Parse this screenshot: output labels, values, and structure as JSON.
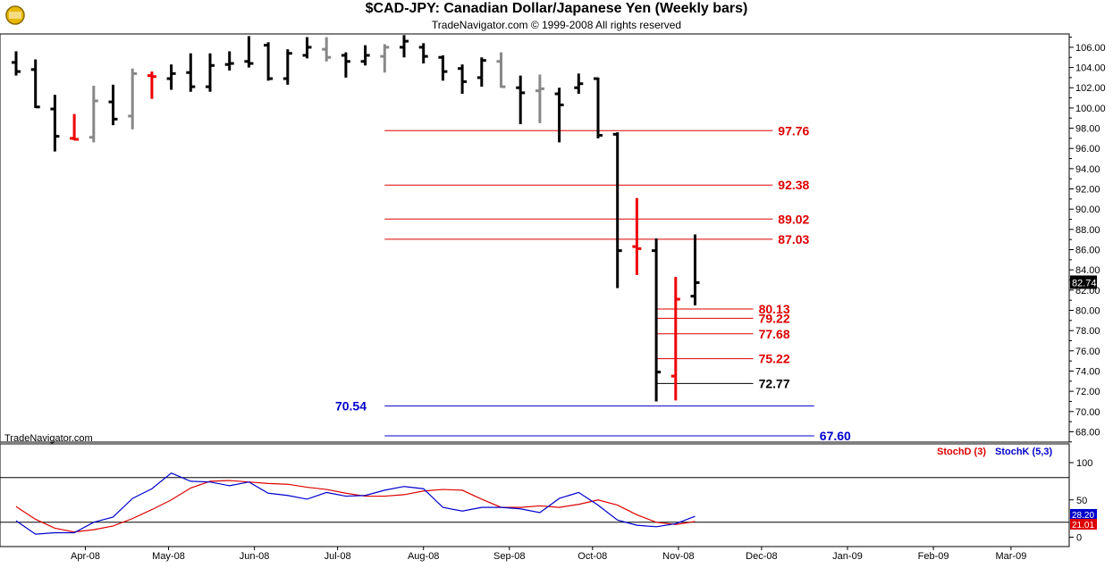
{
  "header": {
    "title": "$CAD-JPY:  Canadian Dollar/Japanese Yen  (Weekly bars)",
    "subtitle": "TradeNavigator.com © 1999-2008 All rights reserved",
    "watermark": "TradeNavigator.com"
  },
  "colors": {
    "up_bar": "#000000",
    "down_bar": "#000000",
    "red_bar": "#ee0000",
    "gray_bar": "#888888",
    "fib_red": "#dd0000",
    "support_blue": "#0000cc",
    "stoch_d": "#dd0000",
    "stoch_k": "#0000cc"
  },
  "chart_data": [
    {
      "type": "ohlc",
      "name": "price",
      "ylim": [
        66.8,
        107.0
      ],
      "yticks": [
        "106.00",
        "104.00",
        "102.00",
        "100.00",
        "98.00",
        "96.00",
        "94.00",
        "92.00",
        "90.00",
        "88.00",
        "86.00",
        "84.00",
        "82.00",
        "80.00",
        "78.00",
        "76.00",
        "74.00",
        "72.00",
        "70.00",
        "68.00"
      ],
      "xlabels": [
        "Apr-08",
        "May-08",
        "Jun-08",
        "Jul-08",
        "Aug-08",
        "Sep-08",
        "Oct-08",
        "Nov-08",
        "Dec-08",
        "Jan-09",
        "Feb-09",
        "Mar-09"
      ],
      "last_price": "82.74",
      "bars": [
        {
          "d": "2008-03-07",
          "o": 104.5,
          "h": 105.6,
          "l": 103.2,
          "c": 103.6,
          "color": "black"
        },
        {
          "d": "2008-03-14",
          "o": 103.8,
          "h": 104.8,
          "l": 100.0,
          "c": 100.1,
          "color": "black"
        },
        {
          "d": "2008-03-21",
          "o": 99.9,
          "h": 101.3,
          "l": 95.7,
          "c": 97.2,
          "color": "black"
        },
        {
          "d": "2008-03-28",
          "o": 97.0,
          "h": 99.4,
          "l": 96.8,
          "c": 96.9,
          "color": "red"
        },
        {
          "d": "2008-04-04",
          "o": 97.1,
          "h": 102.2,
          "l": 96.6,
          "c": 100.7,
          "color": "gray"
        },
        {
          "d": "2008-04-11",
          "o": 100.6,
          "h": 102.3,
          "l": 98.3,
          "c": 98.9,
          "color": "black"
        },
        {
          "d": "2008-04-18",
          "o": 99.2,
          "h": 103.9,
          "l": 97.9,
          "c": 103.4,
          "color": "gray"
        },
        {
          "d": "2008-04-25",
          "o": 103.2,
          "h": 103.6,
          "l": 100.9,
          "c": 103.1,
          "color": "red"
        },
        {
          "d": "2008-05-02",
          "o": 102.9,
          "h": 104.3,
          "l": 101.8,
          "c": 103.4,
          "color": "black"
        },
        {
          "d": "2008-05-09",
          "o": 103.5,
          "h": 105.4,
          "l": 101.6,
          "c": 102.1,
          "color": "black"
        },
        {
          "d": "2008-05-16",
          "o": 102.1,
          "h": 105.4,
          "l": 101.6,
          "c": 104.2,
          "color": "black"
        },
        {
          "d": "2008-05-23",
          "o": 104.3,
          "h": 105.6,
          "l": 103.7,
          "c": 104.4,
          "color": "black"
        },
        {
          "d": "2008-05-30",
          "o": 104.6,
          "h": 107.1,
          "l": 104.0,
          "c": 104.4,
          "color": "black"
        },
        {
          "d": "2008-06-06",
          "o": 106.2,
          "h": 106.5,
          "l": 102.7,
          "c": 102.9,
          "color": "black"
        },
        {
          "d": "2008-06-13",
          "o": 102.9,
          "h": 105.8,
          "l": 102.3,
          "c": 105.4,
          "color": "black"
        },
        {
          "d": "2008-06-20",
          "o": 105.2,
          "h": 107.0,
          "l": 104.9,
          "c": 106.0,
          "color": "black"
        },
        {
          "d": "2008-06-27",
          "o": 105.8,
          "h": 107.0,
          "l": 104.6,
          "c": 105.0,
          "color": "gray"
        },
        {
          "d": "2008-07-04",
          "o": 105.2,
          "h": 105.5,
          "l": 103.0,
          "c": 104.6,
          "color": "black"
        },
        {
          "d": "2008-07-11",
          "o": 104.6,
          "h": 106.2,
          "l": 104.2,
          "c": 105.2,
          "color": "black"
        },
        {
          "d": "2008-07-18",
          "o": 105.1,
          "h": 106.3,
          "l": 103.5,
          "c": 106.0,
          "color": "gray"
        },
        {
          "d": "2008-07-25",
          "o": 106.0,
          "h": 107.2,
          "l": 105.0,
          "c": 106.6,
          "color": "black"
        },
        {
          "d": "2008-08-01",
          "o": 106.0,
          "h": 106.4,
          "l": 104.4,
          "c": 105.1,
          "color": "black"
        },
        {
          "d": "2008-08-08",
          "o": 105.0,
          "h": 105.2,
          "l": 102.7,
          "c": 103.6,
          "color": "black"
        },
        {
          "d": "2008-08-15",
          "o": 103.9,
          "h": 104.3,
          "l": 101.4,
          "c": 102.6,
          "color": "black"
        },
        {
          "d": "2008-08-22",
          "o": 103.0,
          "h": 105.0,
          "l": 102.1,
          "c": 104.7,
          "color": "black"
        },
        {
          "d": "2008-08-29",
          "o": 104.6,
          "h": 105.5,
          "l": 102.0,
          "c": 102.1,
          "color": "gray"
        },
        {
          "d": "2008-09-05",
          "o": 102.0,
          "h": 103.2,
          "l": 98.4,
          "c": 101.5,
          "color": "black"
        },
        {
          "d": "2008-09-12",
          "o": 101.7,
          "h": 103.3,
          "l": 98.5,
          "c": 101.9,
          "color": "gray"
        },
        {
          "d": "2008-09-19",
          "o": 101.4,
          "h": 102.0,
          "l": 96.6,
          "c": 100.3,
          "color": "black"
        },
        {
          "d": "2008-09-26",
          "o": 102.0,
          "h": 103.4,
          "l": 101.4,
          "c": 102.4,
          "color": "black"
        },
        {
          "d": "2008-10-03",
          "o": 102.9,
          "h": 103.0,
          "l": 97.0,
          "c": 97.3,
          "color": "black"
        },
        {
          "d": "2008-10-10",
          "o": 97.4,
          "h": 97.6,
          "l": 82.2,
          "c": 85.9,
          "color": "black"
        },
        {
          "d": "2008-10-17",
          "o": 86.3,
          "h": 91.1,
          "l": 83.5,
          "c": 86.1,
          "color": "red"
        },
        {
          "d": "2008-10-24",
          "o": 85.9,
          "h": 87.1,
          "l": 71.0,
          "c": 73.9,
          "color": "black"
        },
        {
          "d": "2008-10-31",
          "o": 73.5,
          "h": 83.3,
          "l": 71.1,
          "c": 81.1,
          "color": "red"
        },
        {
          "d": "2008-11-07",
          "o": 81.4,
          "h": 87.5,
          "l": 80.5,
          "c": 82.74,
          "color": "black"
        }
      ],
      "levels": [
        {
          "value": 97.76,
          "label": "97.76",
          "color": "red",
          "from": "2008-07-18",
          "to": "2008-12-05"
        },
        {
          "value": 92.38,
          "label": "92.38",
          "color": "red",
          "from": "2008-07-18",
          "to": "2008-12-05"
        },
        {
          "value": 89.02,
          "label": "89.02",
          "color": "red",
          "from": "2008-07-18",
          "to": "2008-12-05"
        },
        {
          "value": 87.03,
          "label": "87.03",
          "color": "red",
          "from": "2008-07-18",
          "to": "2008-12-05"
        },
        {
          "value": 80.13,
          "label": "80.13",
          "color": "red",
          "from": "2008-10-24",
          "to": "2008-11-28"
        },
        {
          "value": 79.22,
          "label": "79.22",
          "color": "red",
          "from": "2008-10-24",
          "to": "2008-11-28"
        },
        {
          "value": 77.68,
          "label": "77.68",
          "color": "red",
          "from": "2008-10-24",
          "to": "2008-11-28"
        },
        {
          "value": 75.22,
          "label": "75.22",
          "color": "red",
          "from": "2008-10-24",
          "to": "2008-11-28"
        },
        {
          "value": 72.77,
          "label": "72.77",
          "color": "black",
          "from": "2008-10-24",
          "to": "2008-11-28"
        },
        {
          "value": 70.54,
          "label": "70.54",
          "color": "blue",
          "from": "2008-07-18",
          "to": "2008-12-20"
        },
        {
          "value": 67.6,
          "label": "67.60",
          "color": "blue",
          "from": "2008-07-18",
          "to": "2008-12-20"
        }
      ]
    },
    {
      "type": "line",
      "name": "stochastic",
      "ylim": [
        -5,
        106
      ],
      "yticks": [
        "100",
        "50",
        "0"
      ],
      "reference_lines": [
        80,
        20
      ],
      "legend": [
        "StochD (3)",
        "StochK (5,3)"
      ],
      "last_values": {
        "k": "28.20",
        "d": "21.01"
      },
      "dates": [
        "2008-03-07",
        "2008-03-14",
        "2008-03-21",
        "2008-03-28",
        "2008-04-04",
        "2008-04-11",
        "2008-04-18",
        "2008-04-25",
        "2008-05-02",
        "2008-05-09",
        "2008-05-16",
        "2008-05-23",
        "2008-05-30",
        "2008-06-06",
        "2008-06-13",
        "2008-06-20",
        "2008-06-27",
        "2008-07-04",
        "2008-07-11",
        "2008-07-18",
        "2008-07-25",
        "2008-08-01",
        "2008-08-08",
        "2008-08-15",
        "2008-08-22",
        "2008-08-29",
        "2008-09-05",
        "2008-09-12",
        "2008-09-19",
        "2008-09-26",
        "2008-10-03",
        "2008-10-10",
        "2008-10-17",
        "2008-10-24",
        "2008-10-31",
        "2008-11-07"
      ],
      "series": [
        {
          "name": "StochD (3)",
          "color": "red",
          "values": [
            41,
            24,
            12,
            7,
            10,
            15,
            25,
            37,
            50,
            66,
            75,
            76,
            74,
            72,
            71,
            67,
            64,
            59,
            55,
            55,
            57,
            62,
            64,
            63,
            51,
            40,
            40,
            42,
            40,
            44,
            50,
            43,
            30,
            20,
            17,
            21
          ]
        },
        {
          "name": "StochK (5,3)",
          "color": "blue",
          "values": [
            22,
            4,
            6,
            6,
            20,
            27,
            52,
            65,
            86,
            75,
            74,
            69,
            74,
            59,
            56,
            51,
            60,
            55,
            56,
            63,
            68,
            65,
            40,
            35,
            40,
            40,
            38,
            33,
            52,
            60,
            43,
            23,
            16,
            14,
            18,
            28
          ]
        }
      ]
    }
  ]
}
